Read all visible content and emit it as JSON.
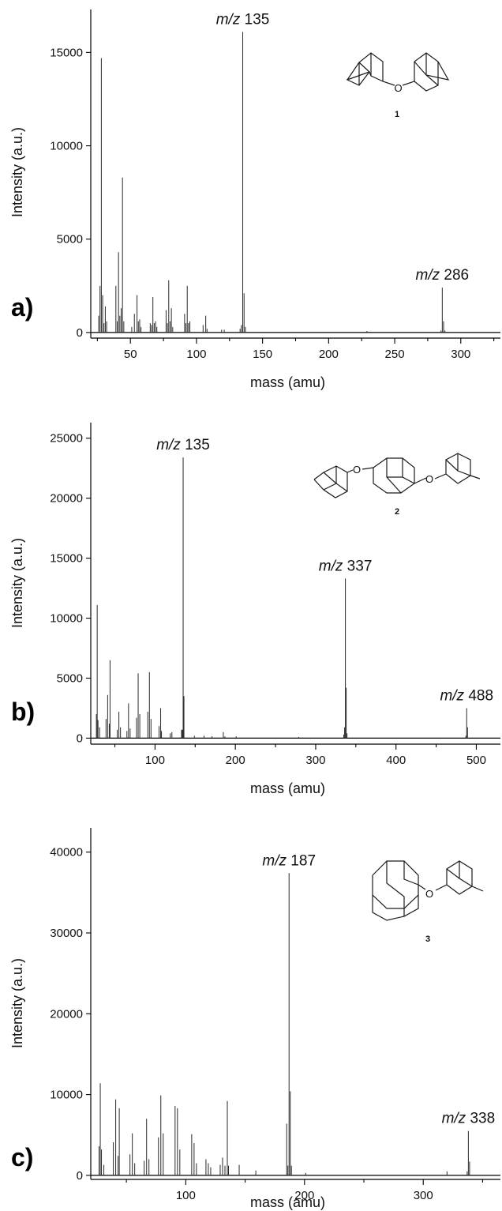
{
  "chart_data": [
    {
      "type": "bar",
      "panel_label": "a)",
      "xlabel": "mass (amu)",
      "ylabel": "Intensity (a.u.)",
      "xlim": [
        20,
        330
      ],
      "ylim": [
        -300,
        17300
      ],
      "xticks": [
        50,
        100,
        150,
        200,
        250,
        300
      ],
      "yticks": [
        0,
        5000,
        10000,
        15000
      ],
      "annotations": [
        {
          "label_italic": "m/z",
          "label_value": "135",
          "x": 135,
          "y": 16100
        },
        {
          "label_italic": "m/z",
          "label_value": "286",
          "x": 286,
          "y": 2400
        }
      ],
      "compound_number": "1",
      "peaks": [
        {
          "x": 26,
          "y": 900
        },
        {
          "x": 27,
          "y": 2500
        },
        {
          "x": 28,
          "y": 14700
        },
        {
          "x": 29,
          "y": 2000
        },
        {
          "x": 30,
          "y": 500
        },
        {
          "x": 31,
          "y": 1400
        },
        {
          "x": 32,
          "y": 600
        },
        {
          "x": 39,
          "y": 2500
        },
        {
          "x": 40,
          "y": 600
        },
        {
          "x": 41,
          "y": 4300
        },
        {
          "x": 42,
          "y": 900
        },
        {
          "x": 43,
          "y": 1300
        },
        {
          "x": 44,
          "y": 8300
        },
        {
          "x": 45,
          "y": 600
        },
        {
          "x": 51,
          "y": 300
        },
        {
          "x": 53,
          "y": 1000
        },
        {
          "x": 55,
          "y": 2000
        },
        {
          "x": 56,
          "y": 600
        },
        {
          "x": 57,
          "y": 700
        },
        {
          "x": 58,
          "y": 300
        },
        {
          "x": 65,
          "y": 500
        },
        {
          "x": 66,
          "y": 400
        },
        {
          "x": 67,
          "y": 1900
        },
        {
          "x": 68,
          "y": 500
        },
        {
          "x": 69,
          "y": 600
        },
        {
          "x": 70,
          "y": 300
        },
        {
          "x": 77,
          "y": 1200
        },
        {
          "x": 78,
          "y": 500
        },
        {
          "x": 79,
          "y": 2800
        },
        {
          "x": 80,
          "y": 600
        },
        {
          "x": 81,
          "y": 1300
        },
        {
          "x": 82,
          "y": 300
        },
        {
          "x": 91,
          "y": 1000
        },
        {
          "x": 92,
          "y": 500
        },
        {
          "x": 93,
          "y": 2500
        },
        {
          "x": 94,
          "y": 500
        },
        {
          "x": 95,
          "y": 600
        },
        {
          "x": 105,
          "y": 400
        },
        {
          "x": 107,
          "y": 900
        },
        {
          "x": 108,
          "y": 200
        },
        {
          "x": 119,
          "y": 150
        },
        {
          "x": 121,
          "y": 150
        },
        {
          "x": 133,
          "y": 200
        },
        {
          "x": 134,
          "y": 400
        },
        {
          "x": 135,
          "y": 16100
        },
        {
          "x": 136,
          "y": 2100
        },
        {
          "x": 137,
          "y": 300
        },
        {
          "x": 229,
          "y": 80
        },
        {
          "x": 285,
          "y": 100
        },
        {
          "x": 286,
          "y": 2400
        },
        {
          "x": 287,
          "y": 600
        },
        {
          "x": 288,
          "y": 100
        }
      ]
    },
    {
      "type": "bar",
      "panel_label": "b)",
      "xlabel": "mass (amu)",
      "ylabel": "Intensity (a.u.)",
      "xlim": [
        20,
        530
      ],
      "ylim": [
        -500,
        26300
      ],
      "xticks": [
        100,
        200,
        300,
        400,
        500
      ],
      "yticks": [
        0,
        5000,
        10000,
        15000,
        20000,
        25000
      ],
      "annotations": [
        {
          "label_italic": "m/z",
          "label_value": "135",
          "x": 135,
          "y": 23400
        },
        {
          "label_italic": "m/z",
          "label_value": "337",
          "x": 337,
          "y": 13300
        },
        {
          "label_italic": "m/z",
          "label_value": "488",
          "x": 488,
          "y": 2500
        }
      ],
      "compound_number": "2",
      "peaks": [
        {
          "x": 27,
          "y": 2000
        },
        {
          "x": 28,
          "y": 11100
        },
        {
          "x": 29,
          "y": 1500
        },
        {
          "x": 31,
          "y": 900
        },
        {
          "x": 39,
          "y": 1600
        },
        {
          "x": 41,
          "y": 3600
        },
        {
          "x": 43,
          "y": 1200
        },
        {
          "x": 44,
          "y": 6500
        },
        {
          "x": 53,
          "y": 700
        },
        {
          "x": 55,
          "y": 2200
        },
        {
          "x": 57,
          "y": 900
        },
        {
          "x": 65,
          "y": 600
        },
        {
          "x": 67,
          "y": 2900
        },
        {
          "x": 69,
          "y": 800
        },
        {
          "x": 77,
          "y": 1700
        },
        {
          "x": 79,
          "y": 5400
        },
        {
          "x": 81,
          "y": 2000
        },
        {
          "x": 91,
          "y": 2200
        },
        {
          "x": 93,
          "y": 5500
        },
        {
          "x": 95,
          "y": 1600
        },
        {
          "x": 105,
          "y": 1000
        },
        {
          "x": 107,
          "y": 2500
        },
        {
          "x": 108,
          "y": 600
        },
        {
          "x": 119,
          "y": 400
        },
        {
          "x": 121,
          "y": 500
        },
        {
          "x": 133,
          "y": 700
        },
        {
          "x": 134,
          "y": 700
        },
        {
          "x": 135,
          "y": 23400
        },
        {
          "x": 136,
          "y": 3500
        },
        {
          "x": 149,
          "y": 200
        },
        {
          "x": 161,
          "y": 200
        },
        {
          "x": 171,
          "y": 150
        },
        {
          "x": 185,
          "y": 500
        },
        {
          "x": 187,
          "y": 150
        },
        {
          "x": 201,
          "y": 150
        },
        {
          "x": 279,
          "y": 100
        },
        {
          "x": 335,
          "y": 300
        },
        {
          "x": 336,
          "y": 900
        },
        {
          "x": 337,
          "y": 13300
        },
        {
          "x": 338,
          "y": 4200
        },
        {
          "x": 339,
          "y": 400
        },
        {
          "x": 487,
          "y": 200
        },
        {
          "x": 488,
          "y": 2500
        },
        {
          "x": 489,
          "y": 900
        }
      ]
    },
    {
      "type": "bar",
      "panel_label": "c)",
      "xlabel": "mass (amu)",
      "ylabel": "Intensity (a.u.)",
      "xlim": [
        20,
        365
      ],
      "ylim": [
        -500,
        43000
      ],
      "xticks": [
        100,
        200,
        300
      ],
      "yticks": [
        0,
        10000,
        20000,
        30000,
        40000
      ],
      "annotations": [
        {
          "label_italic": "m/z",
          "label_value": "187",
          "x": 187,
          "y": 37400
        },
        {
          "label_italic": "m/z",
          "label_value": "338",
          "x": 338,
          "y": 5500
        }
      ],
      "compound_number": "3",
      "peaks": [
        {
          "x": 27,
          "y": 3600
        },
        {
          "x": 28,
          "y": 11400
        },
        {
          "x": 29,
          "y": 3200
        },
        {
          "x": 31,
          "y": 1300
        },
        {
          "x": 39,
          "y": 4100
        },
        {
          "x": 41,
          "y": 9400
        },
        {
          "x": 43,
          "y": 2400
        },
        {
          "x": 44,
          "y": 8300
        },
        {
          "x": 53,
          "y": 2600
        },
        {
          "x": 55,
          "y": 5200
        },
        {
          "x": 57,
          "y": 1500
        },
        {
          "x": 65,
          "y": 1800
        },
        {
          "x": 67,
          "y": 7000
        },
        {
          "x": 69,
          "y": 2000
        },
        {
          "x": 77,
          "y": 4700
        },
        {
          "x": 79,
          "y": 9900
        },
        {
          "x": 81,
          "y": 5200
        },
        {
          "x": 91,
          "y": 8600
        },
        {
          "x": 93,
          "y": 8300
        },
        {
          "x": 95,
          "y": 3200
        },
        {
          "x": 105,
          "y": 5100
        },
        {
          "x": 107,
          "y": 4000
        },
        {
          "x": 109,
          "y": 1500
        },
        {
          "x": 117,
          "y": 2000
        },
        {
          "x": 119,
          "y": 1500
        },
        {
          "x": 121,
          "y": 1000
        },
        {
          "x": 129,
          "y": 1300
        },
        {
          "x": 131,
          "y": 2200
        },
        {
          "x": 133,
          "y": 1200
        },
        {
          "x": 135,
          "y": 9200
        },
        {
          "x": 136,
          "y": 1200
        },
        {
          "x": 145,
          "y": 1300
        },
        {
          "x": 159,
          "y": 600
        },
        {
          "x": 185,
          "y": 6400
        },
        {
          "x": 186,
          "y": 1200
        },
        {
          "x": 187,
          "y": 37400
        },
        {
          "x": 188,
          "y": 10400
        },
        {
          "x": 189,
          "y": 1200
        },
        {
          "x": 201,
          "y": 300
        },
        {
          "x": 320,
          "y": 500
        },
        {
          "x": 337,
          "y": 500
        },
        {
          "x": 338,
          "y": 5500
        },
        {
          "x": 339,
          "y": 1700
        }
      ]
    }
  ]
}
